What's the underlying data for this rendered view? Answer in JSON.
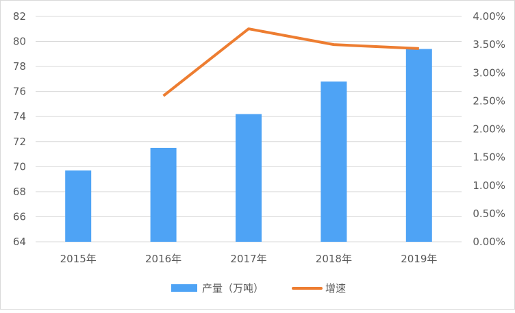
{
  "chart_data": {
    "type": "bar+line",
    "categories": [
      "2015年",
      "2016年",
      "2017年",
      "2018年",
      "2019年"
    ],
    "series": [
      {
        "name": "产量（万吨）",
        "type": "bar",
        "axis": "left",
        "values": [
          69.7,
          71.5,
          74.2,
          76.8,
          79.4
        ],
        "color": "#4ea3f5"
      },
      {
        "name": "增速",
        "type": "line",
        "axis": "right",
        "values": [
          null,
          2.59,
          3.78,
          3.5,
          3.43
        ],
        "color": "#ed7d31"
      }
    ],
    "y_left": {
      "min": 64,
      "max": 82,
      "step": 2,
      "ticks": [
        "64",
        "66",
        "68",
        "70",
        "72",
        "74",
        "76",
        "78",
        "80",
        "82"
      ]
    },
    "y_right": {
      "min": 0,
      "max": 4,
      "step": 0.5,
      "ticks": [
        "0.00%",
        "0.50%",
        "1.00%",
        "1.50%",
        "2.00%",
        "2.50%",
        "3.00%",
        "3.50%",
        "4.00%"
      ]
    },
    "grid": true,
    "legend": "bottom"
  }
}
